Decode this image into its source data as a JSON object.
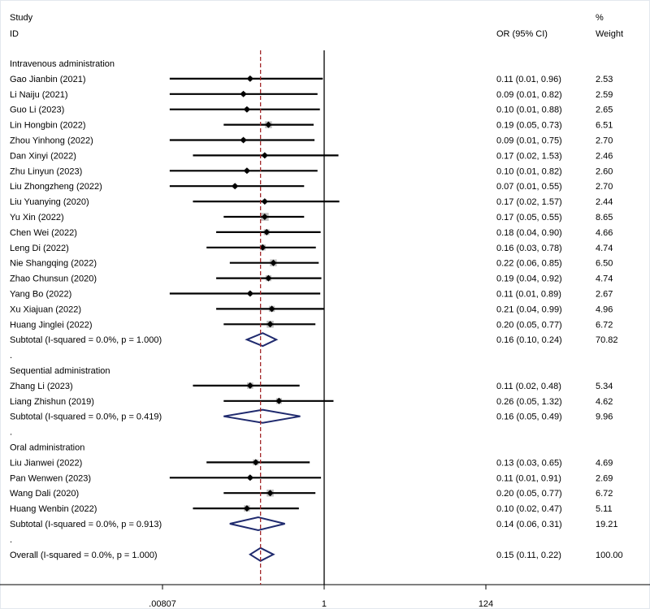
{
  "chart_data": {
    "type": "forest",
    "headers": {
      "study_line1": "Study",
      "study_line2": "ID",
      "or_label": "OR (95% CI)",
      "weight_line1": "%",
      "weight_line2": "Weight"
    },
    "x_scale": "log",
    "xlim": [
      0.00807,
      124
    ],
    "null_value": 1,
    "overall_or": 0.15,
    "x_ticks": [
      {
        "value": 0.00807,
        "label": ".00807"
      },
      {
        "value": 1,
        "label": "1"
      },
      {
        "value": 124,
        "label": "124"
      }
    ],
    "rows": [
      {
        "kind": "group",
        "label": "Intravenous administration"
      },
      {
        "kind": "study",
        "label": "Gao Jianbin (2021)",
        "or": 0.11,
        "lo": 0.01,
        "hi": 0.96,
        "text": "0.11 (0.01, 0.96)",
        "weight": 2.53,
        "weight_text": "2.53"
      },
      {
        "kind": "study",
        "label": "Li Naiju (2021)",
        "or": 0.09,
        "lo": 0.01,
        "hi": 0.82,
        "text": "0.09 (0.01, 0.82)",
        "weight": 2.59,
        "weight_text": "2.59"
      },
      {
        "kind": "study",
        "label": "Guo Li (2023)",
        "or": 0.1,
        "lo": 0.01,
        "hi": 0.88,
        "text": "0.10 (0.01, 0.88)",
        "weight": 2.65,
        "weight_text": "2.65"
      },
      {
        "kind": "study",
        "label": "Lin Hongbin (2022)",
        "or": 0.19,
        "lo": 0.05,
        "hi": 0.73,
        "text": "0.19 (0.05, 0.73)",
        "weight": 6.51,
        "weight_text": "6.51"
      },
      {
        "kind": "study",
        "label": "Zhou Yinhong (2022)",
        "or": 0.09,
        "lo": 0.01,
        "hi": 0.75,
        "text": "0.09 (0.01, 0.75)",
        "weight": 2.7,
        "weight_text": "2.70"
      },
      {
        "kind": "study",
        "label": "Dan Xinyi (2022)",
        "or": 0.17,
        "lo": 0.02,
        "hi": 1.53,
        "text": "0.17 (0.02, 1.53)",
        "weight": 2.46,
        "weight_text": "2.46"
      },
      {
        "kind": "study",
        "label": "Zhu Linyun (2023)",
        "or": 0.1,
        "lo": 0.01,
        "hi": 0.82,
        "text": "0.10 (0.01, 0.82)",
        "weight": 2.6,
        "weight_text": "2.60"
      },
      {
        "kind": "study",
        "label": "Liu Zhongzheng (2022)",
        "or": 0.07,
        "lo": 0.01,
        "hi": 0.55,
        "text": "0.07 (0.01, 0.55)",
        "weight": 2.7,
        "weight_text": "2.70"
      },
      {
        "kind": "study",
        "label": "Liu Yuanying (2020)",
        "or": 0.17,
        "lo": 0.02,
        "hi": 1.57,
        "text": "0.17 (0.02, 1.57)",
        "weight": 2.44,
        "weight_text": "2.44"
      },
      {
        "kind": "study",
        "label": "Yu Xin (2022)",
        "or": 0.17,
        "lo": 0.05,
        "hi": 0.55,
        "text": "0.17 (0.05, 0.55)",
        "weight": 8.65,
        "weight_text": "8.65"
      },
      {
        "kind": "study",
        "label": "Chen Wei (2022)",
        "or": 0.18,
        "lo": 0.04,
        "hi": 0.9,
        "text": "0.18 (0.04, 0.90)",
        "weight": 4.66,
        "weight_text": "4.66"
      },
      {
        "kind": "study",
        "label": "Leng Di (2022)",
        "or": 0.16,
        "lo": 0.03,
        "hi": 0.78,
        "text": "0.16 (0.03, 0.78)",
        "weight": 4.74,
        "weight_text": "4.74"
      },
      {
        "kind": "study",
        "label": "Nie Shangqing (2022)",
        "or": 0.22,
        "lo": 0.06,
        "hi": 0.85,
        "text": "0.22 (0.06, 0.85)",
        "weight": 6.5,
        "weight_text": "6.50"
      },
      {
        "kind": "study",
        "label": "Zhao Chunsun (2020)",
        "or": 0.19,
        "lo": 0.04,
        "hi": 0.92,
        "text": "0.19 (0.04, 0.92)",
        "weight": 4.74,
        "weight_text": "4.74"
      },
      {
        "kind": "study",
        "label": "Yang Bo (2022)",
        "or": 0.11,
        "lo": 0.01,
        "hi": 0.89,
        "text": "0.11 (0.01, 0.89)",
        "weight": 2.67,
        "weight_text": "2.67"
      },
      {
        "kind": "study",
        "label": "Xu Xiajuan (2022)",
        "or": 0.21,
        "lo": 0.04,
        "hi": 0.99,
        "text": "0.21 (0.04, 0.99)",
        "weight": 4.96,
        "weight_text": "4.96"
      },
      {
        "kind": "study",
        "label": "Huang Jinglei (2022)",
        "or": 0.2,
        "lo": 0.05,
        "hi": 0.77,
        "text": "0.20 (0.05, 0.77)",
        "weight": 6.72,
        "weight_text": "6.72"
      },
      {
        "kind": "subtotal",
        "label": "Subtotal  (I-squared = 0.0%, p = 1.000)",
        "or": 0.16,
        "lo": 0.1,
        "hi": 0.24,
        "text": "0.16 (0.10, 0.24)",
        "weight_text": "70.82"
      },
      {
        "kind": "dot",
        "label": "."
      },
      {
        "kind": "group",
        "label": "Sequential administration"
      },
      {
        "kind": "study",
        "label": "Zhang Li (2023)",
        "or": 0.11,
        "lo": 0.02,
        "hi": 0.48,
        "text": "0.11 (0.02, 0.48)",
        "weight": 5.34,
        "weight_text": "5.34"
      },
      {
        "kind": "study",
        "label": "Liang Zhishun (2019)",
        "or": 0.26,
        "lo": 0.05,
        "hi": 1.32,
        "text": "0.26 (0.05, 1.32)",
        "weight": 4.62,
        "weight_text": "4.62"
      },
      {
        "kind": "subtotal",
        "label": "Subtotal  (I-squared = 0.0%, p = 0.419)",
        "or": 0.16,
        "lo": 0.05,
        "hi": 0.49,
        "text": "0.16 (0.05, 0.49)",
        "weight_text": "9.96"
      },
      {
        "kind": "dot",
        "label": "."
      },
      {
        "kind": "group",
        "label": "Oral administration"
      },
      {
        "kind": "study",
        "label": "Liu Jianwei (2022)",
        "or": 0.13,
        "lo": 0.03,
        "hi": 0.65,
        "text": "0.13 (0.03, 0.65)",
        "weight": 4.69,
        "weight_text": "4.69"
      },
      {
        "kind": "study",
        "label": "Pan Wenwen (2023)",
        "or": 0.11,
        "lo": 0.01,
        "hi": 0.91,
        "text": "0.11 (0.01, 0.91)",
        "weight": 2.69,
        "weight_text": "2.69"
      },
      {
        "kind": "study",
        "label": "Wang Dali (2020)",
        "or": 0.2,
        "lo": 0.05,
        "hi": 0.77,
        "text": "0.20 (0.05, 0.77)",
        "weight": 6.72,
        "weight_text": "6.72"
      },
      {
        "kind": "study",
        "label": "Huang Wenbin (2022)",
        "or": 0.1,
        "lo": 0.02,
        "hi": 0.47,
        "text": "0.10 (0.02, 0.47)",
        "weight": 5.11,
        "weight_text": "5.11"
      },
      {
        "kind": "subtotal",
        "label": "Subtotal  (I-squared = 0.0%, p = 0.913)",
        "or": 0.14,
        "lo": 0.06,
        "hi": 0.31,
        "text": "0.14 (0.06, 0.31)",
        "weight_text": "19.21"
      },
      {
        "kind": "dot",
        "label": "."
      },
      {
        "kind": "subtotal",
        "label": "Overall  (I-squared = 0.0%, p = 1.000)",
        "or": 0.15,
        "lo": 0.11,
        "hi": 0.22,
        "text": "0.15 (0.11, 0.22)",
        "weight_text": "100.00"
      }
    ],
    "colors": {
      "background": "#ffffff",
      "frame": "#e3e8ee",
      "text": "#000000",
      "ci_line": "#000000",
      "box": "#bfbfbf",
      "diamond_outline": "#1f2a6e",
      "null_line": "#000000",
      "overall_line": "#a3282b"
    }
  }
}
